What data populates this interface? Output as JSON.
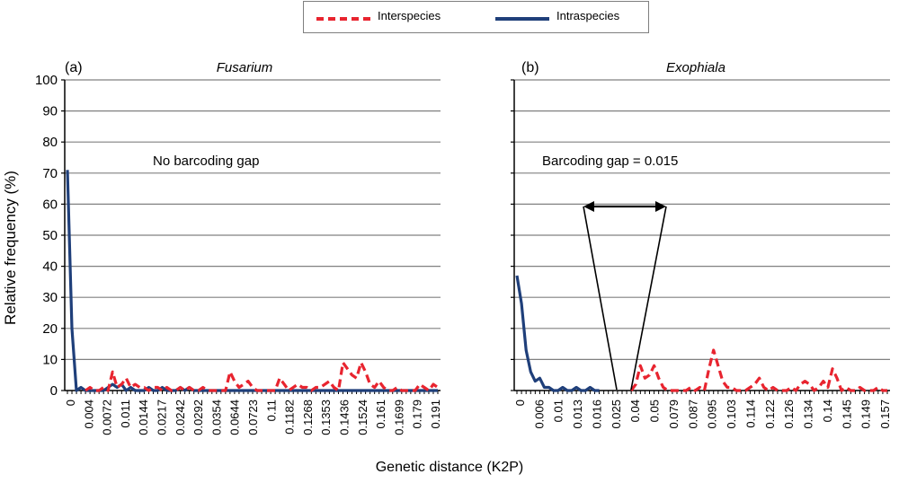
{
  "legend": {
    "interspecies_label": "Interspecies",
    "intraspecies_label": "Intraspecies"
  },
  "colors": {
    "interspecies": "#e8242f",
    "intraspecies": "#1f3f7a",
    "grid": "#808080"
  },
  "ylabel": "Relative frequency (%)",
  "xlabel": "Genetic distance (K2P)",
  "chart_data": [
    {
      "type": "line",
      "panel_label": "(a)",
      "title": "Fusarium",
      "annotation": "No barcoding gap",
      "ylim": [
        0,
        100
      ],
      "yticks": [
        0,
        10,
        20,
        30,
        40,
        50,
        60,
        70,
        80,
        90,
        100
      ],
      "grid": true,
      "x_tick_labels": [
        "0",
        "0.004",
        "0.0072",
        "0.011",
        "0.0144",
        "0.0217",
        "0.0242",
        "0.0292",
        "0.0354",
        "0.0644",
        "0.0723",
        "0.11",
        "0.1182",
        "0.1268",
        "0.1353",
        "0.1436",
        "0.1524",
        "0.161",
        "0.1699",
        "0.179",
        "0.191"
      ],
      "series": [
        {
          "name": "Intraspecies",
          "style": "solid",
          "values": [
            71,
            20,
            0,
            1,
            0,
            0,
            0,
            0,
            0,
            1,
            2,
            1,
            2,
            0,
            1,
            0,
            0,
            0,
            1,
            0,
            0,
            1,
            0,
            0,
            0,
            1,
            0,
            1,
            0,
            0,
            0,
            0,
            0,
            0,
            0,
            0,
            0,
            0,
            0,
            0,
            0,
            0,
            0,
            0,
            0,
            0,
            0,
            0,
            0,
            0,
            0,
            0,
            0,
            0,
            0,
            0,
            0,
            0,
            0,
            0,
            0,
            0,
            0,
            0,
            0,
            0,
            0,
            0,
            0,
            0,
            0,
            0,
            0,
            0,
            0,
            0,
            0,
            0,
            0,
            0,
            0,
            0,
            0
          ]
        },
        {
          "name": "Interspecies",
          "style": "dashed",
          "values": [
            null,
            null,
            null,
            null,
            0,
            1,
            0,
            0,
            1,
            0,
            6,
            1,
            2,
            4,
            1,
            2,
            1,
            1,
            0,
            1,
            1,
            0,
            1,
            0,
            0,
            1,
            0,
            1,
            0,
            0,
            1,
            0,
            0,
            0,
            0,
            0,
            6,
            3,
            1,
            2,
            3,
            1,
            0,
            0,
            0,
            0,
            0,
            4,
            2,
            0,
            1,
            2,
            1,
            1,
            0,
            1,
            1,
            2,
            3,
            1,
            0,
            9,
            7,
            5,
            4,
            9,
            6,
            2,
            1,
            3,
            1,
            0,
            0,
            1,
            0,
            0,
            0,
            0,
            2,
            1,
            0,
            2,
            1
          ]
        }
      ]
    },
    {
      "type": "line",
      "panel_label": "(b)",
      "title": "Exophiala",
      "annotation": "Barcoding gap = 0.015",
      "ylim": [
        0,
        100
      ],
      "yticks": [
        0,
        10,
        20,
        30,
        40,
        50,
        60,
        70,
        80,
        90,
        100
      ],
      "grid": true,
      "x_tick_labels": [
        "0",
        "0.006",
        "0.01",
        "0.013",
        "0.016",
        "0.025",
        "0.04",
        "0.05",
        "0.079",
        "0.087",
        "0.095",
        "0.103",
        "0.114",
        "0.122",
        "0.126",
        "0.134",
        "0.14",
        "0.145",
        "0.149",
        "0.157"
      ],
      "series": [
        {
          "name": "Intraspecies",
          "style": "solid",
          "values": [
            37,
            28,
            13,
            6,
            3,
            4,
            1,
            1,
            0,
            0,
            1,
            0,
            0,
            1,
            0,
            0,
            1,
            0,
            0,
            null,
            null,
            null,
            null,
            null,
            null,
            null,
            null,
            null,
            null,
            null,
            null,
            null,
            null,
            null,
            null,
            null,
            null,
            null,
            null,
            null,
            null,
            null,
            null,
            null,
            null,
            null,
            null,
            null,
            null,
            null,
            null,
            null,
            null,
            null,
            null,
            null,
            null,
            null,
            null,
            null,
            null,
            null,
            null,
            null,
            null,
            null,
            null,
            null,
            null,
            null,
            null,
            null,
            null,
            null,
            null,
            null,
            null,
            null,
            null,
            null,
            null,
            null
          ]
        },
        {
          "name": "Interspecies",
          "style": "dashed",
          "values": [
            null,
            null,
            null,
            null,
            null,
            null,
            null,
            null,
            null,
            null,
            null,
            null,
            null,
            null,
            null,
            null,
            null,
            null,
            null,
            null,
            null,
            null,
            null,
            null,
            null,
            0,
            2,
            8,
            4,
            5,
            8,
            4,
            1,
            0,
            0,
            0,
            0,
            0,
            1,
            0,
            1,
            0,
            7,
            13,
            8,
            3,
            1,
            1,
            0,
            0,
            0,
            1,
            2,
            4,
            1,
            0,
            1,
            0,
            0,
            0,
            1,
            0,
            2,
            3,
            2,
            0,
            1,
            3,
            1,
            7,
            4,
            0,
            1,
            0,
            0,
            1,
            0,
            0,
            0,
            1,
            0,
            0
          ]
        }
      ]
    }
  ]
}
